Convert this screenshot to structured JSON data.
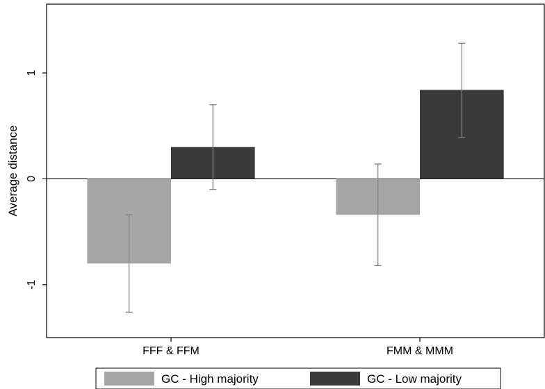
{
  "chart_data": {
    "type": "bar",
    "title": "",
    "xlabel": "",
    "ylabel": "Average distance",
    "categories": [
      "FFF & FFM",
      "FMM & MMM"
    ],
    "series": [
      {
        "name": "GC - High majority",
        "color": "#a6a6a6",
        "values": [
          -0.8,
          -0.34
        ],
        "error_low": [
          -1.26,
          -0.82
        ],
        "error_high": [
          -0.34,
          0.14
        ]
      },
      {
        "name": "GC - Low majority",
        "color": "#3a3a3a",
        "values": [
          0.3,
          0.84
        ],
        "error_low": [
          -0.1,
          0.39
        ],
        "error_high": [
          0.7,
          1.28
        ]
      }
    ],
    "yticks": [
      -1,
      0,
      1
    ],
    "ytick_labels": [
      "-1",
      "0",
      "1"
    ],
    "ylim": [
      -1.5,
      1.65
    ],
    "grid": false,
    "legend_position": "bottom",
    "error_bar_color": "#808080"
  }
}
